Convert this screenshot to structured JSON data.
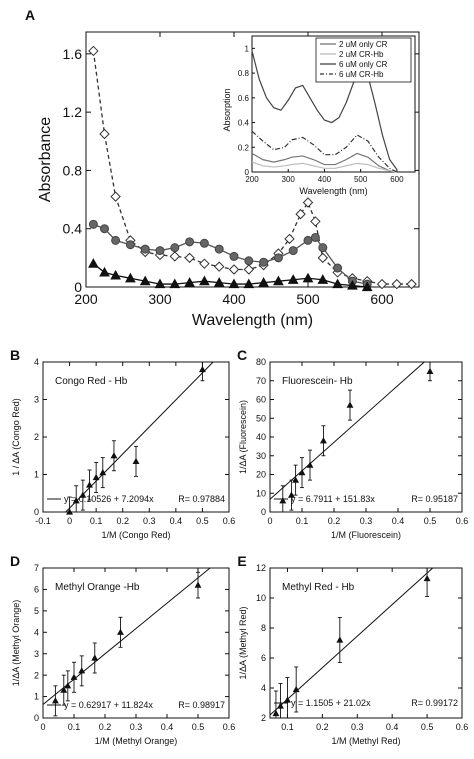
{
  "colors": {
    "axis": "#111111",
    "series_dark": "#222222",
    "series_mid": "#555555",
    "series_gray": "#777777",
    "inset_light": "#999999",
    "inset_lighter": "#bbbbbb"
  },
  "chart_data": [
    {
      "id": "A",
      "panel_label": "A",
      "type": "line",
      "xlabel": "Wavelength (nm)",
      "ylabel": "Absorbance",
      "xlim": [
        200,
        650
      ],
      "ylim": [
        0,
        1.75
      ],
      "xticks": [
        200,
        300,
        400,
        500,
        600
      ],
      "yticks": [
        0,
        0.4,
        0.8,
        1.2,
        1.6
      ],
      "tick_labels_x": [
        "200",
        "300",
        "400",
        "500",
        "600"
      ],
      "tick_labels_y": [
        "0",
        "0.4",
        "0.8",
        "1.2",
        "1.6"
      ],
      "series": [
        {
          "marker": "diamond",
          "style": "dashed",
          "x": [
            210,
            225,
            240,
            260,
            280,
            300,
            320,
            340,
            360,
            380,
            400,
            420,
            440,
            460,
            475,
            490,
            500,
            510,
            520,
            540,
            560,
            580,
            600,
            620,
            640
          ],
          "y": [
            1.62,
            1.05,
            0.62,
            0.32,
            0.24,
            0.22,
            0.21,
            0.2,
            0.16,
            0.14,
            0.12,
            0.12,
            0.15,
            0.23,
            0.33,
            0.5,
            0.58,
            0.45,
            0.2,
            0.1,
            0.06,
            0.04,
            0.02,
            0.02,
            0.02
          ]
        },
        {
          "marker": "circle",
          "style": "solid",
          "x": [
            210,
            225,
            240,
            260,
            280,
            300,
            320,
            340,
            360,
            380,
            400,
            420,
            440,
            460,
            480,
            500,
            510,
            520,
            540,
            560,
            580
          ],
          "y": [
            0.43,
            0.4,
            0.32,
            0.29,
            0.26,
            0.25,
            0.27,
            0.31,
            0.3,
            0.26,
            0.21,
            0.18,
            0.17,
            0.2,
            0.25,
            0.32,
            0.34,
            0.27,
            0.13,
            0.04,
            0.02
          ]
        },
        {
          "marker": "triangle",
          "style": "solid",
          "x": [
            210,
            225,
            240,
            260,
            280,
            300,
            320,
            340,
            360,
            380,
            400,
            420,
            440,
            460,
            480,
            500,
            520,
            540,
            560,
            580
          ],
          "y": [
            0.16,
            0.1,
            0.08,
            0.06,
            0.04,
            0.02,
            0.02,
            0.03,
            0.04,
            0.03,
            0.02,
            0.02,
            0.03,
            0.04,
            0.05,
            0.06,
            0.05,
            0.02,
            0.01,
            0.0
          ]
        }
      ],
      "inset": {
        "xlabel": "Wavelength (nm)",
        "ylabel": "Absorption",
        "xlim": [
          200,
          650
        ],
        "ylim": [
          0,
          1.1
        ],
        "xticks": [
          200,
          300,
          400,
          500,
          600
        ],
        "yticks": [
          0,
          0.2,
          0.4,
          0.6,
          0.8,
          1
        ],
        "tick_labels_x": [
          "200",
          "300",
          "400",
          "500",
          "600"
        ],
        "tick_labels_y": [
          "0",
          "0.2",
          "0.4",
          "0.6",
          "0.8",
          "1"
        ],
        "legend": [
          "2 uM only CR",
          "2 uM CR-Hb",
          "6 uM only CR",
          "6 uM CR-Hb"
        ],
        "legend_position": "top-right",
        "series": [
          {
            "name": "2 uM only CR",
            "style": "solid",
            "color": "#777777",
            "x": [
              200,
              230,
              260,
              290,
              310,
              340,
              370,
              400,
              430,
              460,
              490,
              520,
              550,
              580,
              600
            ],
            "y": [
              0.15,
              0.1,
              0.08,
              0.1,
              0.12,
              0.13,
              0.1,
              0.06,
              0.06,
              0.1,
              0.15,
              0.12,
              0.05,
              0.01,
              0.0
            ]
          },
          {
            "name": "2 uM CR-Hb",
            "style": "solid",
            "color": "#bbbbbb",
            "x": [
              200,
              230,
              260,
              290,
              310,
              340,
              370,
              400,
              430,
              460,
              490,
              520,
              550,
              580,
              600
            ],
            "y": [
              0.08,
              0.05,
              0.04,
              0.05,
              0.06,
              0.07,
              0.05,
              0.03,
              0.03,
              0.05,
              0.07,
              0.06,
              0.03,
              0.01,
              0.0
            ]
          },
          {
            "name": "6 uM only CR",
            "style": "solid",
            "color": "#444444",
            "x": [
              200,
              220,
              240,
              260,
              280,
              300,
              320,
              340,
              360,
              380,
              400,
              420,
              440,
              460,
              480,
              500,
              520,
              540,
              560,
              580,
              600
            ],
            "y": [
              0.98,
              0.75,
              0.6,
              0.52,
              0.5,
              0.58,
              0.68,
              0.7,
              0.6,
              0.5,
              0.42,
              0.4,
              0.44,
              0.56,
              0.72,
              0.84,
              0.78,
              0.55,
              0.3,
              0.1,
              0.02
            ]
          },
          {
            "name": "6 uM CR-Hb",
            "style": "dashdot",
            "color": "#333333",
            "x": [
              200,
              230,
              260,
              290,
              310,
              340,
              370,
              400,
              430,
              460,
              490,
              520,
              550,
              580,
              600
            ],
            "y": [
              0.33,
              0.25,
              0.18,
              0.2,
              0.26,
              0.28,
              0.22,
              0.14,
              0.14,
              0.2,
              0.3,
              0.25,
              0.12,
              0.03,
              0.0
            ]
          }
        ]
      }
    },
    {
      "id": "B",
      "panel_label": "B",
      "type": "scatter",
      "annotation": "Congo Red - Hb",
      "equation": "y = 0.10526 + 7.2094x",
      "r_text": "R= 0.97884",
      "xlabel": "1/M (Congo Red)",
      "ylabel": "1 / ΔA (Congo Red)",
      "xlim": [
        -0.1,
        0.6
      ],
      "ylim": [
        0,
        4
      ],
      "xticks": [
        -0.1,
        0,
        0.1,
        0.2,
        0.3,
        0.4,
        0.5,
        0.6
      ],
      "yticks": [
        0,
        1,
        2,
        3,
        4
      ],
      "tick_labels_x": [
        "-0.1",
        "0",
        "0.1",
        "0.2",
        "0.3",
        "0.4",
        "0.5",
        "0.6"
      ],
      "tick_labels_y": [
        "0",
        "1",
        "2",
        "3",
        "4"
      ],
      "fit": {
        "intercept": 0.10526,
        "slope": 7.2094
      },
      "x": [
        0.0,
        0.025,
        0.05,
        0.075,
        0.1,
        0.125,
        0.167,
        0.25,
        0.5
      ],
      "y": [
        0.0,
        0.3,
        0.45,
        0.72,
        0.92,
        1.05,
        1.5,
        1.35,
        3.8
      ],
      "err": [
        0.4,
        0.4,
        0.4,
        0.4,
        0.4,
        0.4,
        0.4,
        0.4,
        0.3
      ]
    },
    {
      "id": "C",
      "panel_label": "C",
      "type": "scatter",
      "annotation": "Fluorescein- Hb",
      "equation": "y = 6.7911 + 151.83x",
      "r_text": "R= 0.95187",
      "xlabel": "1/M (Fluorescein)",
      "ylabel": "1/ΔA (Fluorescein)",
      "xlim": [
        0,
        0.6
      ],
      "ylim": [
        0,
        80
      ],
      "xticks": [
        0,
        0.1,
        0.2,
        0.3,
        0.4,
        0.5,
        0.6
      ],
      "yticks": [
        0,
        10,
        20,
        30,
        40,
        50,
        60,
        70,
        80
      ],
      "tick_labels_x": [
        "0",
        "0.1",
        "0.2",
        "0.3",
        "0.4",
        "0.5",
        "0.6"
      ],
      "tick_labels_y": [
        "0",
        "10",
        "20",
        "30",
        "40",
        "50",
        "60",
        "70",
        "80"
      ],
      "fit": {
        "intercept": 6.7911,
        "slope": 151.83
      },
      "x": [
        0.04,
        0.067,
        0.08,
        0.1,
        0.125,
        0.167,
        0.25,
        0.5
      ],
      "y": [
        6,
        9,
        17,
        21,
        25,
        38,
        57,
        75
      ],
      "err": [
        8,
        8,
        8,
        8,
        8,
        8,
        8,
        5
      ]
    },
    {
      "id": "D",
      "panel_label": "D",
      "type": "scatter",
      "annotation": "Methyl Orange -Hb",
      "equation": "y = 0.62917 + 11.824x",
      "r_text": "R= 0.98917",
      "xlabel": "1/M (Methyl Orange)",
      "ylabel": "1/ΔA (Methyl Orange)",
      "xlim": [
        0,
        0.6
      ],
      "ylim": [
        0,
        7
      ],
      "xticks": [
        0,
        0.1,
        0.2,
        0.3,
        0.4,
        0.5,
        0.6
      ],
      "yticks": [
        0,
        1,
        2,
        3,
        4,
        5,
        6,
        7
      ],
      "tick_labels_x": [
        "0",
        "0.1",
        "0.2",
        "0.3",
        "0.4",
        "0.5",
        "0.6"
      ],
      "tick_labels_y": [
        "0",
        "1",
        "2",
        "3",
        "4",
        "5",
        "6",
        "7"
      ],
      "fit": {
        "intercept": 0.62917,
        "slope": 11.824
      },
      "x": [
        0.04,
        0.067,
        0.08,
        0.1,
        0.125,
        0.167,
        0.25,
        0.5
      ],
      "y": [
        0.8,
        1.3,
        1.5,
        1.9,
        2.2,
        2.8,
        4.0,
        6.2
      ],
      "err": [
        0.7,
        0.7,
        0.7,
        0.7,
        0.7,
        0.7,
        0.7,
        0.6
      ]
    },
    {
      "id": "E",
      "panel_label": "E",
      "type": "scatter",
      "annotation": "Methyl Red - Hb",
      "equation": "y = 1.1505 + 21.02x",
      "r_text": "R= 0.99172",
      "xlabel": "1/M (Methyl Red)",
      "ylabel": "1/ΔA (Methyl Red)",
      "xlim": [
        0.05,
        0.6
      ],
      "ylim": [
        2,
        12
      ],
      "xticks": [
        0.1,
        0.2,
        0.3,
        0.4,
        0.5,
        0.6
      ],
      "yticks": [
        2,
        4,
        6,
        8,
        10,
        12
      ],
      "tick_labels_x": [
        "0.1",
        "0.2",
        "0.3",
        "0.4",
        "0.5",
        "0.6"
      ],
      "tick_labels_y": [
        "2",
        "4",
        "6",
        "8",
        "10",
        "12"
      ],
      "fit": {
        "intercept": 1.1505,
        "slope": 21.02
      },
      "x": [
        0.067,
        0.08,
        0.1,
        0.125,
        0.25,
        0.5
      ],
      "y": [
        2.3,
        2.8,
        3.2,
        3.9,
        7.2,
        11.3
      ],
      "err": [
        1.5,
        1.5,
        1.5,
        1.5,
        1.5,
        1.2
      ]
    }
  ]
}
